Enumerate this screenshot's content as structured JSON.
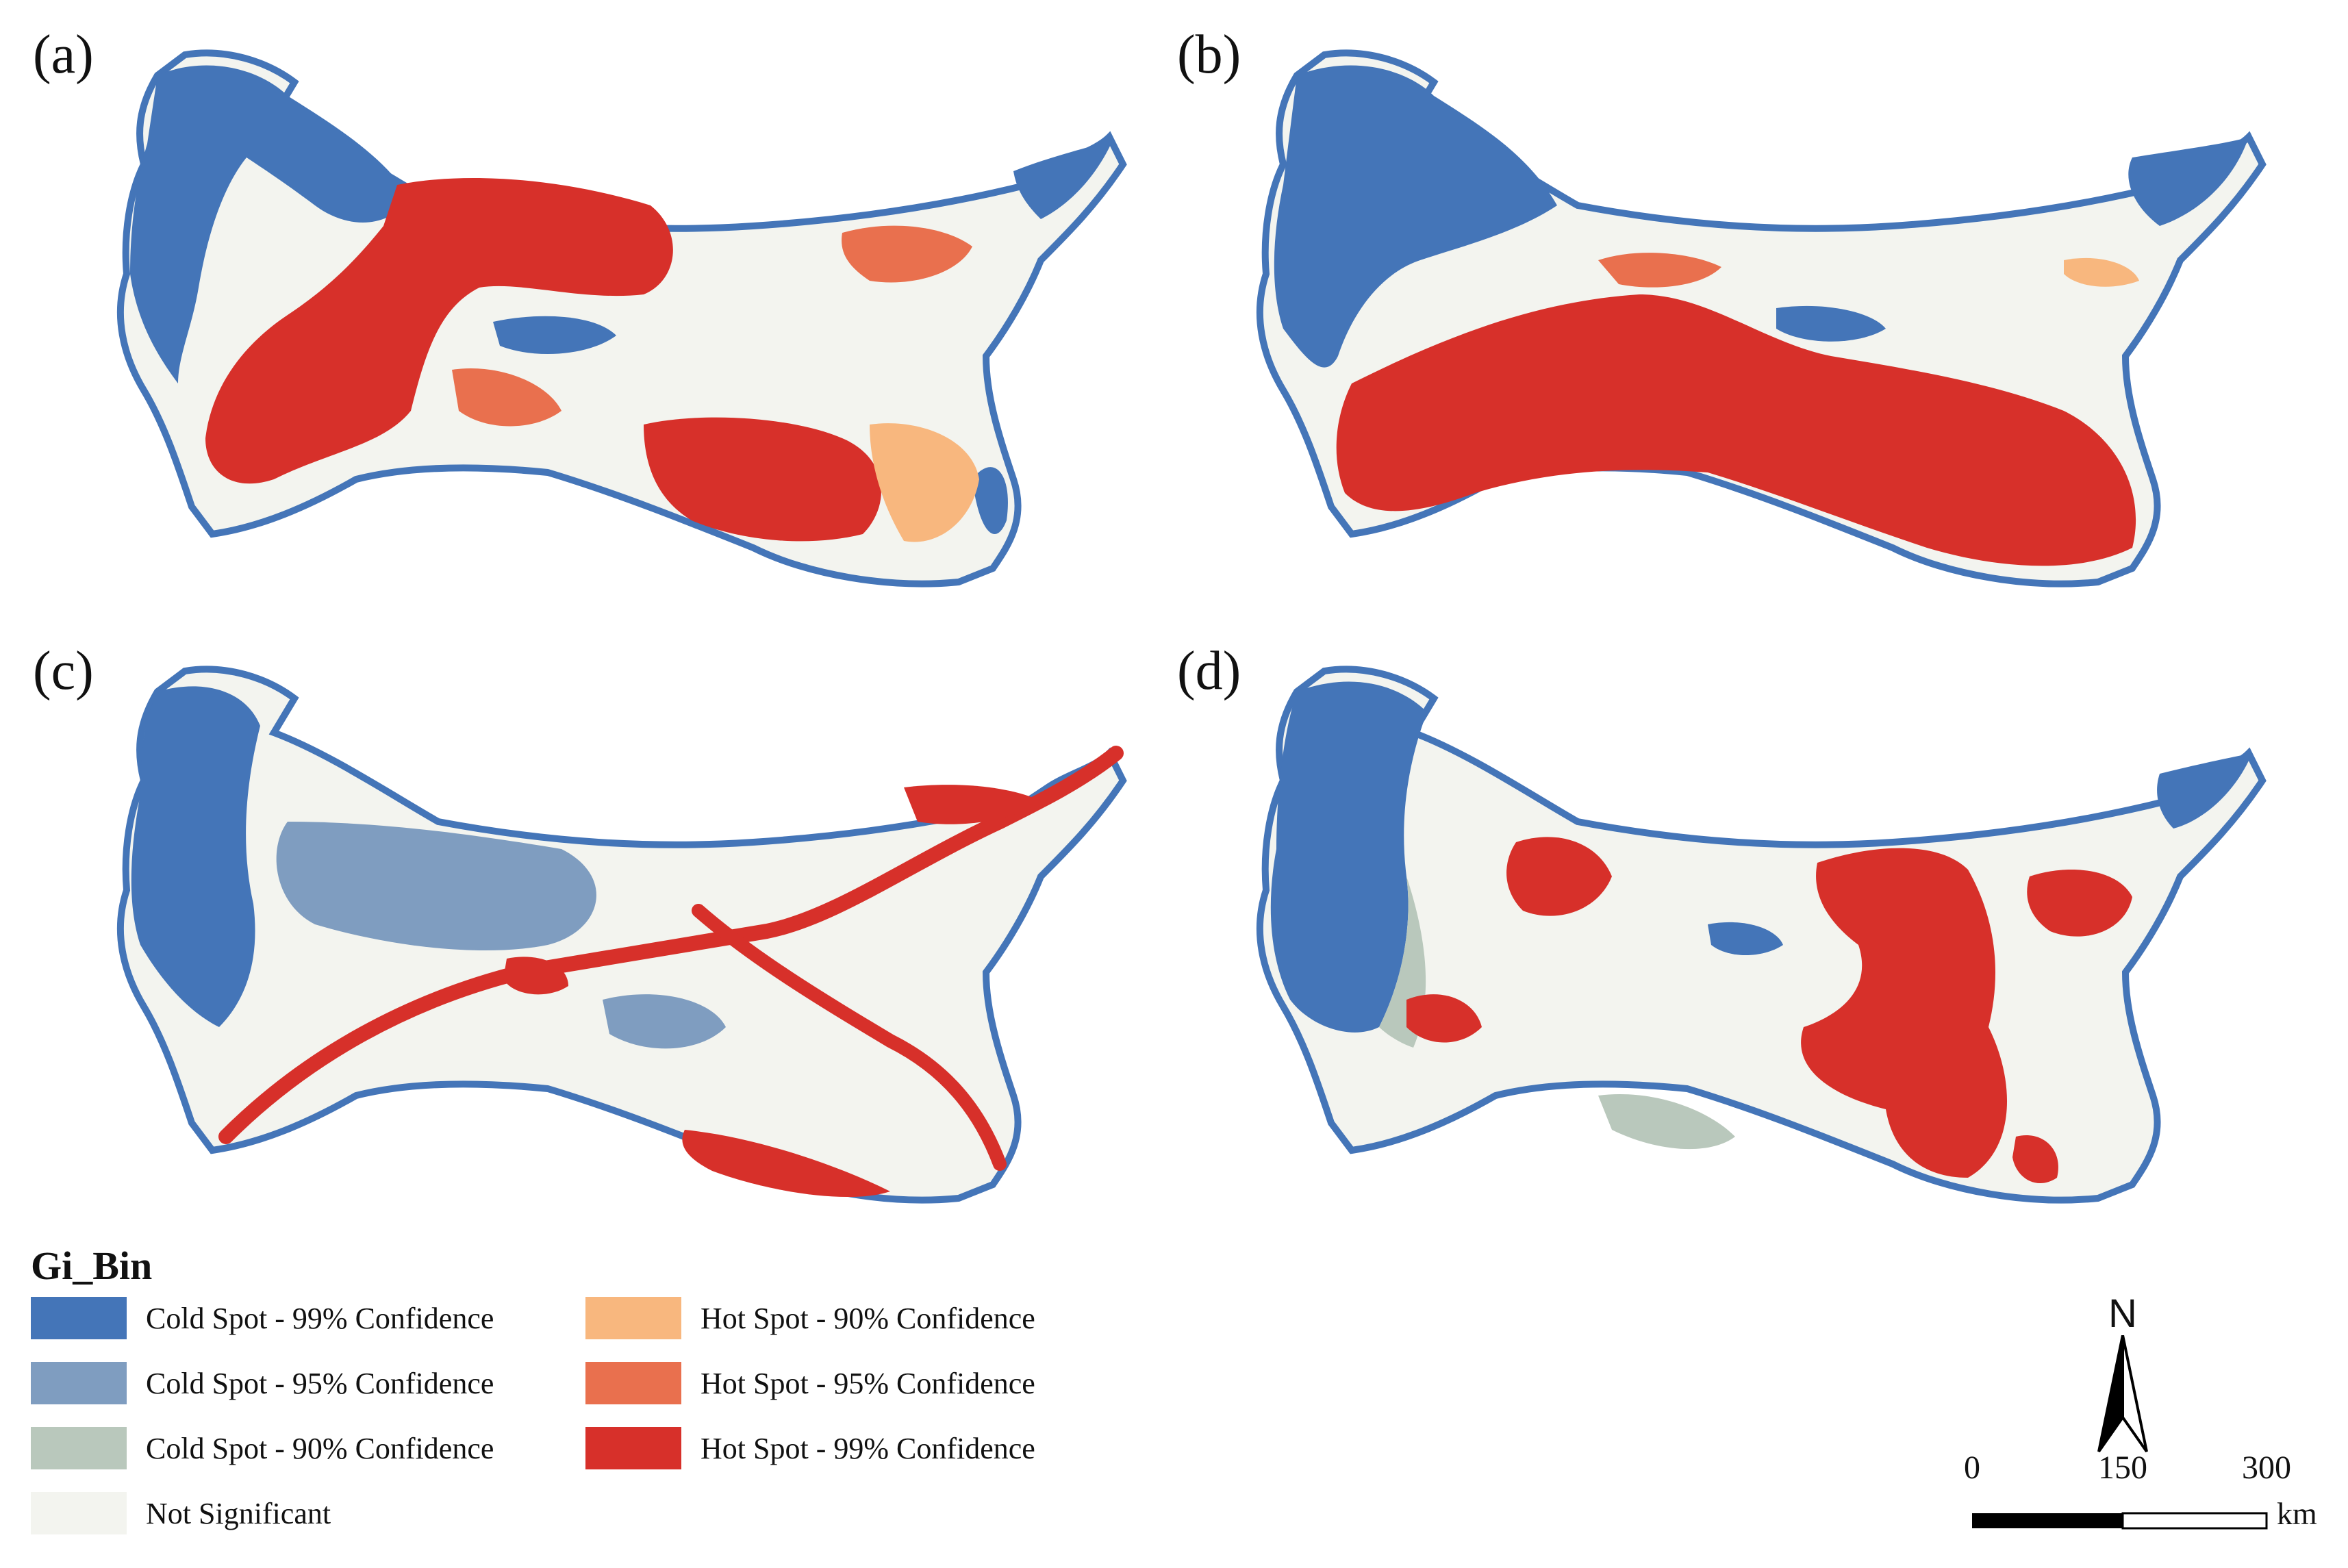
{
  "panels": [
    {
      "id": "a",
      "label": "(a)"
    },
    {
      "id": "b",
      "label": "(b)"
    },
    {
      "id": "c",
      "label": "(c)"
    },
    {
      "id": "d",
      "label": "(d)"
    }
  ],
  "legend": {
    "title": "Gi_Bin",
    "items": [
      {
        "label": "Cold Spot - 99% Confidence",
        "color": "#4475b8"
      },
      {
        "label": "Cold Spot - 95% Confidence",
        "color": "#7f9dc0"
      },
      {
        "label": "Cold Spot - 90% Confidence",
        "color": "#b9c8bc"
      },
      {
        "label": "Not Significant",
        "color": "#f3f4ef"
      },
      {
        "label": "Hot Spot - 90% Confidence",
        "color": "#f8b77e"
      },
      {
        "label": "Hot Spot - 95% Confidence",
        "color": "#e9704e"
      },
      {
        "label": "Hot Spot - 99% Confidence",
        "color": "#d7302a"
      }
    ]
  },
  "north_arrow": {
    "label": "N"
  },
  "scale_bar": {
    "ticks": [
      "0",
      "150",
      "300"
    ],
    "unit": "km"
  }
}
